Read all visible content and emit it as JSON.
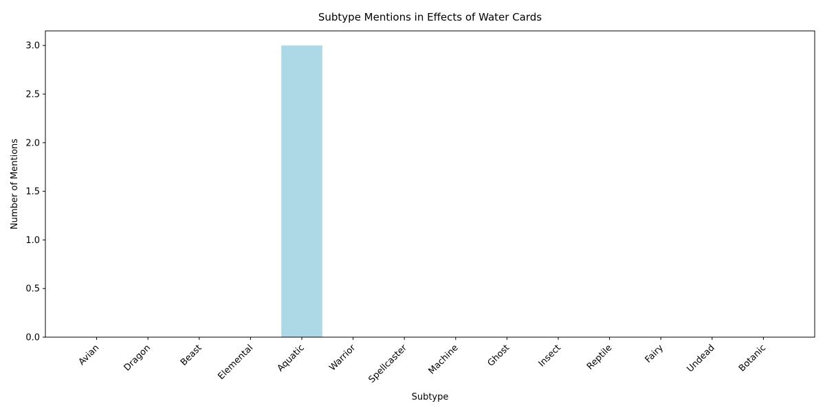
{
  "chart_data": {
    "type": "bar",
    "title": "Subtype Mentions in Effects of Water Cards",
    "xlabel": "Subtype",
    "ylabel": "Number of Mentions",
    "categories": [
      "Avian",
      "Dragon",
      "Beast",
      "Elemental",
      "Aquatic",
      "Warrior",
      "Spellcaster",
      "Machine",
      "Ghost",
      "Insect",
      "Reptile",
      "Fairy",
      "Undead",
      "Botanic"
    ],
    "values": [
      0,
      0,
      0,
      0,
      3,
      0,
      0,
      0,
      0,
      0,
      0,
      0,
      0,
      0
    ],
    "yticks": [
      "0.0",
      "0.5",
      "1.0",
      "1.5",
      "2.0",
      "2.5",
      "3.0"
    ],
    "ylim": [
      0,
      3.15
    ],
    "bar_color": "#add8e6",
    "grid": false,
    "legend": "none"
  }
}
